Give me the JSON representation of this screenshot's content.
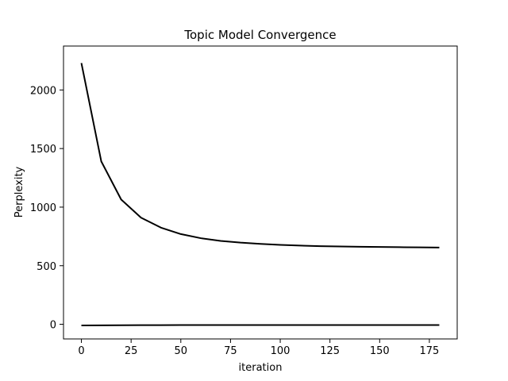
{
  "chart_data": {
    "type": "line",
    "title": "Topic Model Convergence",
    "xlabel": "iteration",
    "ylabel": "Perplexity",
    "xlim": [
      -9,
      189
    ],
    "ylim": [
      -125,
      2375
    ],
    "xticks": [
      0,
      25,
      50,
      75,
      100,
      125,
      150,
      175
    ],
    "yticks": [
      0,
      500,
      1000,
      1500,
      2000
    ],
    "grid": false,
    "line_color": "#000000",
    "series": [
      {
        "x": [
          0,
          10,
          20,
          30,
          40,
          50,
          60,
          70,
          80,
          90,
          100,
          110,
          120,
          130,
          140,
          150,
          160,
          170,
          180
        ],
        "values": [
          2230,
          1390,
          1065,
          910,
          825,
          770,
          735,
          712,
          697,
          686,
          678,
          672,
          667,
          664,
          662,
          660,
          658,
          657,
          655
        ]
      },
      {
        "x": [
          0,
          10,
          20,
          30,
          40,
          50,
          60,
          70,
          80,
          90,
          100,
          110,
          120,
          130,
          140,
          150,
          160,
          170,
          180
        ],
        "values": [
          -10,
          -9,
          -8,
          -7,
          -7,
          -6,
          -6,
          -6,
          -6,
          -6,
          -6,
          -6,
          -6,
          -6,
          -6,
          -6,
          -6,
          -6,
          -6
        ]
      }
    ]
  }
}
